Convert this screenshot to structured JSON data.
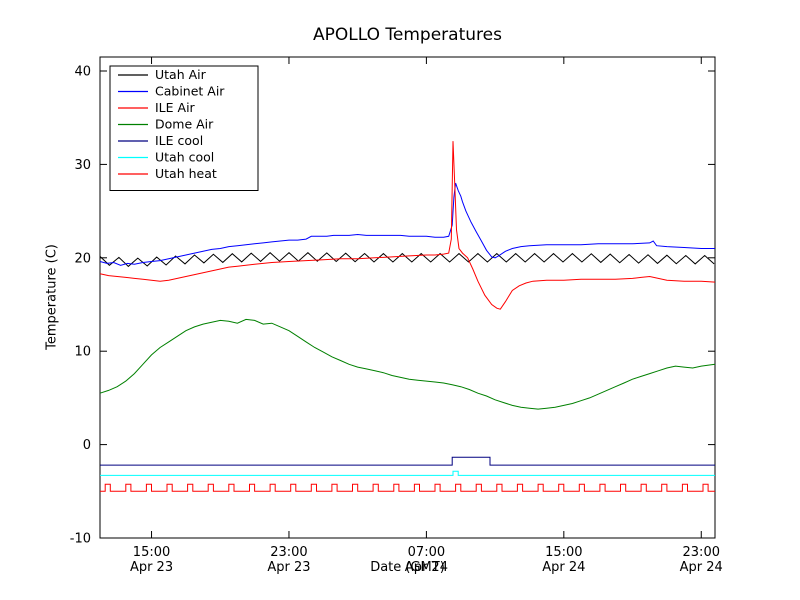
{
  "chart_data": {
    "type": "line",
    "title": "APOLLO Temperatures",
    "xlabel": "Date (GMT)",
    "ylabel": "Temperature (C)",
    "xlim": [
      0,
      35.8
    ],
    "ylim": [
      -10,
      41.5
    ],
    "grid": false,
    "legend_position": "upper-left",
    "y_ticks": [
      -10,
      0,
      10,
      20,
      30,
      40
    ],
    "x_ticks": [
      {
        "x": 3,
        "time": "15:00",
        "date": "Apr 23"
      },
      {
        "x": 11,
        "time": "23:00",
        "date": "Apr 23"
      },
      {
        "x": 19,
        "time": "07:00",
        "date": "Apr 24"
      },
      {
        "x": 27,
        "time": "15:00",
        "date": "Apr 24"
      },
      {
        "x": 35,
        "time": "23:00",
        "date": "Apr 24"
      }
    ],
    "series": [
      {
        "name": "Utah Air",
        "color": "#000000",
        "zigzag": {
          "period": 1.1,
          "amplitude": 0.45,
          "baseline": [
            [
              0,
              19.7
            ],
            [
              2,
              19.5
            ],
            [
              4,
              19.7
            ],
            [
              6,
              19.9
            ],
            [
              8,
              20.0
            ],
            [
              10,
              20.1
            ],
            [
              12,
              20.1
            ],
            [
              16,
              20.0
            ],
            [
              20,
              20.0
            ],
            [
              24,
              20.0
            ],
            [
              28,
              20.0
            ],
            [
              31,
              19.9
            ],
            [
              34,
              19.8
            ],
            [
              35.8,
              19.8
            ]
          ]
        }
      },
      {
        "name": "Cabinet Air",
        "color": "#0000ff",
        "points": [
          [
            0,
            19.6
          ],
          [
            0.4,
            19.4
          ],
          [
            0.8,
            19.5
          ],
          [
            1.2,
            19.2
          ],
          [
            1.6,
            19.4
          ],
          [
            2,
            19.3
          ],
          [
            2.5,
            19.5
          ],
          [
            3,
            19.6
          ],
          [
            3.5,
            19.7
          ],
          [
            4,
            19.9
          ],
          [
            4.5,
            20.1
          ],
          [
            5,
            20.3
          ],
          [
            5.5,
            20.5
          ],
          [
            6,
            20.7
          ],
          [
            6.5,
            20.9
          ],
          [
            7,
            21.0
          ],
          [
            7.5,
            21.2
          ],
          [
            8,
            21.3
          ],
          [
            8.5,
            21.4
          ],
          [
            9,
            21.5
          ],
          [
            9.5,
            21.6
          ],
          [
            10,
            21.7
          ],
          [
            10.5,
            21.8
          ],
          [
            11,
            21.9
          ],
          [
            11.5,
            21.9
          ],
          [
            12,
            22.0
          ],
          [
            12.3,
            22.3
          ],
          [
            12.8,
            22.3
          ],
          [
            13.2,
            22.3
          ],
          [
            13.6,
            22.4
          ],
          [
            14,
            22.4
          ],
          [
            14.5,
            22.4
          ],
          [
            15,
            22.5
          ],
          [
            15.5,
            22.4
          ],
          [
            16,
            22.4
          ],
          [
            16.5,
            22.4
          ],
          [
            17,
            22.4
          ],
          [
            17.5,
            22.4
          ],
          [
            18,
            22.3
          ],
          [
            18.5,
            22.3
          ],
          [
            19,
            22.3
          ],
          [
            19.5,
            22.2
          ],
          [
            20,
            22.2
          ],
          [
            20.3,
            22.3
          ],
          [
            20.5,
            23.5
          ],
          [
            20.6,
            26.5
          ],
          [
            20.7,
            28.0
          ],
          [
            20.85,
            27.2
          ],
          [
            21,
            26.6
          ],
          [
            21.1,
            26.0
          ],
          [
            21.3,
            25.0
          ],
          [
            21.6,
            23.8
          ],
          [
            21.9,
            22.8
          ],
          [
            22.2,
            21.8
          ],
          [
            22.5,
            20.8
          ],
          [
            22.8,
            20.1
          ],
          [
            23,
            20.0
          ],
          [
            23.2,
            20.2
          ],
          [
            23.6,
            20.7
          ],
          [
            24,
            21.0
          ],
          [
            24.5,
            21.2
          ],
          [
            25,
            21.3
          ],
          [
            26,
            21.4
          ],
          [
            27,
            21.4
          ],
          [
            28,
            21.4
          ],
          [
            29,
            21.5
          ],
          [
            30,
            21.5
          ],
          [
            31,
            21.5
          ],
          [
            32,
            21.6
          ],
          [
            32.2,
            21.8
          ],
          [
            32.4,
            21.3
          ],
          [
            33,
            21.2
          ],
          [
            34,
            21.1
          ],
          [
            35,
            21.0
          ],
          [
            35.8,
            21.0
          ]
        ]
      },
      {
        "name": "ILE Air",
        "color": "#ff0000",
        "points": [
          [
            0,
            18.3
          ],
          [
            0.5,
            18.1
          ],
          [
            1,
            18.0
          ],
          [
            1.5,
            17.9
          ],
          [
            2,
            17.8
          ],
          [
            2.5,
            17.7
          ],
          [
            3,
            17.6
          ],
          [
            3.5,
            17.5
          ],
          [
            4,
            17.6
          ],
          [
            4.5,
            17.8
          ],
          [
            5,
            18.0
          ],
          [
            5.5,
            18.2
          ],
          [
            6,
            18.4
          ],
          [
            6.5,
            18.6
          ],
          [
            7,
            18.8
          ],
          [
            7.5,
            19.0
          ],
          [
            8,
            19.1
          ],
          [
            8.5,
            19.2
          ],
          [
            9,
            19.3
          ],
          [
            9.5,
            19.4
          ],
          [
            10,
            19.5
          ],
          [
            11,
            19.6
          ],
          [
            12,
            19.7
          ],
          [
            13,
            19.8
          ],
          [
            14,
            19.9
          ],
          [
            15,
            19.9
          ],
          [
            16,
            20.0
          ],
          [
            17,
            20.1
          ],
          [
            18,
            20.2
          ],
          [
            19,
            20.3
          ],
          [
            19.5,
            20.3
          ],
          [
            20,
            20.4
          ],
          [
            20.3,
            20.5
          ],
          [
            20.45,
            22.0
          ],
          [
            20.55,
            32.5
          ],
          [
            20.65,
            28.0
          ],
          [
            20.75,
            23.0
          ],
          [
            20.9,
            21.0
          ],
          [
            21.1,
            20.5
          ],
          [
            21.4,
            20.0
          ],
          [
            21.7,
            18.8
          ],
          [
            22,
            17.5
          ],
          [
            22.4,
            16.0
          ],
          [
            22.8,
            15.0
          ],
          [
            23.1,
            14.6
          ],
          [
            23.3,
            14.5
          ],
          [
            23.6,
            15.3
          ],
          [
            24,
            16.5
          ],
          [
            24.4,
            17.0
          ],
          [
            24.8,
            17.3
          ],
          [
            25.2,
            17.5
          ],
          [
            26,
            17.6
          ],
          [
            27,
            17.6
          ],
          [
            28,
            17.7
          ],
          [
            29,
            17.7
          ],
          [
            30,
            17.7
          ],
          [
            31,
            17.8
          ],
          [
            31.5,
            17.9
          ],
          [
            32,
            18.0
          ],
          [
            32.5,
            17.8
          ],
          [
            33,
            17.6
          ],
          [
            34,
            17.5
          ],
          [
            35,
            17.5
          ],
          [
            35.8,
            17.4
          ]
        ]
      },
      {
        "name": "Dome Air",
        "color": "#008000",
        "points": [
          [
            0,
            5.5
          ],
          [
            0.5,
            5.8
          ],
          [
            1,
            6.2
          ],
          [
            1.5,
            6.8
          ],
          [
            2,
            7.6
          ],
          [
            2.5,
            8.6
          ],
          [
            3,
            9.6
          ],
          [
            3.5,
            10.4
          ],
          [
            4,
            11.0
          ],
          [
            4.5,
            11.6
          ],
          [
            5,
            12.2
          ],
          [
            5.5,
            12.6
          ],
          [
            6,
            12.9
          ],
          [
            6.5,
            13.1
          ],
          [
            7,
            13.3
          ],
          [
            7.5,
            13.2
          ],
          [
            8,
            13.0
          ],
          [
            8.5,
            13.4
          ],
          [
            9,
            13.3
          ],
          [
            9.5,
            12.9
          ],
          [
            10,
            13.0
          ],
          [
            10.5,
            12.6
          ],
          [
            11,
            12.2
          ],
          [
            11.5,
            11.6
          ],
          [
            12,
            11.0
          ],
          [
            12.5,
            10.4
          ],
          [
            13,
            9.9
          ],
          [
            13.5,
            9.4
          ],
          [
            14,
            9.0
          ],
          [
            14.5,
            8.6
          ],
          [
            15,
            8.3
          ],
          [
            15.5,
            8.1
          ],
          [
            16,
            7.9
          ],
          [
            16.5,
            7.7
          ],
          [
            17,
            7.4
          ],
          [
            17.5,
            7.2
          ],
          [
            18,
            7.0
          ],
          [
            18.5,
            6.9
          ],
          [
            19,
            6.8
          ],
          [
            19.5,
            6.7
          ],
          [
            20,
            6.6
          ],
          [
            20.5,
            6.4
          ],
          [
            21,
            6.2
          ],
          [
            21.5,
            5.9
          ],
          [
            22,
            5.5
          ],
          [
            22.5,
            5.2
          ],
          [
            23,
            4.8
          ],
          [
            23.5,
            4.5
          ],
          [
            24,
            4.2
          ],
          [
            24.5,
            4.0
          ],
          [
            25,
            3.9
          ],
          [
            25.5,
            3.8
          ],
          [
            26,
            3.9
          ],
          [
            26.5,
            4.0
          ],
          [
            27,
            4.2
          ],
          [
            27.5,
            4.4
          ],
          [
            28,
            4.7
          ],
          [
            28.5,
            5.0
          ],
          [
            29,
            5.4
          ],
          [
            29.5,
            5.8
          ],
          [
            30,
            6.2
          ],
          [
            30.5,
            6.6
          ],
          [
            31,
            7.0
          ],
          [
            31.5,
            7.3
          ],
          [
            32,
            7.6
          ],
          [
            32.5,
            7.9
          ],
          [
            33,
            8.2
          ],
          [
            33.5,
            8.4
          ],
          [
            34,
            8.3
          ],
          [
            34.5,
            8.2
          ],
          [
            35,
            8.4
          ],
          [
            35.8,
            8.6
          ]
        ]
      },
      {
        "name": "ILE cool",
        "color": "#000080",
        "points": [
          [
            0,
            -2.2
          ],
          [
            20.5,
            -2.2
          ],
          [
            20.5,
            -1.35
          ],
          [
            22.7,
            -1.35
          ],
          [
            22.7,
            -2.2
          ],
          [
            35.8,
            -2.2
          ]
        ]
      },
      {
        "name": "Utah cool",
        "color": "#00ffff",
        "points": [
          [
            0,
            -3.3
          ],
          [
            20.55,
            -3.3
          ],
          [
            20.55,
            -2.85
          ],
          [
            20.85,
            -2.85
          ],
          [
            20.85,
            -3.3
          ],
          [
            35.8,
            -3.3
          ]
        ]
      },
      {
        "name": "Utah heat",
        "color": "#ff0000",
        "pulse": {
          "start": 0.3,
          "period": 1.2,
          "width": 0.3,
          "low": -5.0,
          "high": -4.25
        }
      }
    ]
  }
}
